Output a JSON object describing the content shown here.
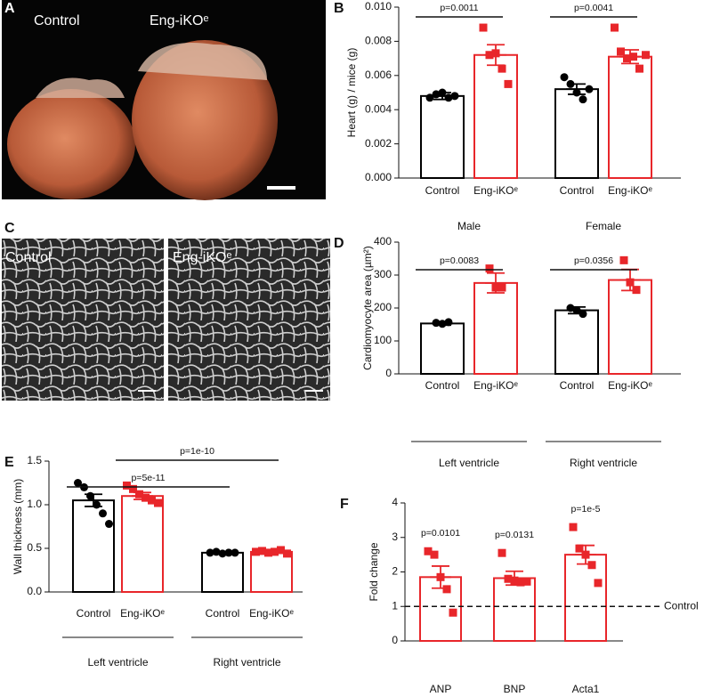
{
  "images": [
    {
      "panel": "A",
      "labels": [
        "Control",
        "Eng-iKOᵉ"
      ]
    },
    {
      "panel": "C",
      "labels": [
        "Control",
        "Eng-iKOᵉ"
      ]
    }
  ],
  "chart_data": [
    {
      "type": "bar",
      "panel": "B",
      "ylabel": "Heart (g) / mice (g)",
      "ylim": [
        0,
        0.01
      ],
      "yticks": [
        {
          "value": 0,
          "label": "0.000"
        },
        {
          "value": 0.002,
          "label": "0.002"
        },
        {
          "value": 0.004,
          "label": "0.004"
        },
        {
          "value": 0.006,
          "label": "0.006"
        },
        {
          "value": 0.008,
          "label": "0.008"
        },
        {
          "value": 0.01,
          "label": "0.010"
        }
      ],
      "categories": [
        "Control",
        "Eng-iKOᵉ",
        "Control",
        "Eng-iKOᵉ"
      ],
      "colors": [
        "#000000",
        "#e8262a",
        "#000000",
        "#e8262a"
      ],
      "values": [
        0.0048,
        0.0072,
        0.0052,
        0.0071
      ],
      "errors": [
        0.0002,
        0.0006,
        0.0003,
        0.0004
      ],
      "points": [
        [
          0.0047,
          0.0049,
          0.005,
          0.0047,
          0.0048
        ],
        [
          0.0088,
          0.0072,
          0.0073,
          0.0064,
          0.0055
        ],
        [
          0.0059,
          0.0055,
          0.005,
          0.0046,
          0.0052
        ],
        [
          0.0088,
          0.0074,
          0.007,
          0.0071,
          0.0064,
          0.0072
        ]
      ],
      "group_labels": [
        "Male",
        "Female"
      ],
      "group_underline": false,
      "comparisons": [
        {
          "bars": [
            0,
            1
          ],
          "label": "p=0.0011"
        },
        {
          "bars": [
            2,
            3
          ],
          "label": "p=0.0041"
        }
      ]
    },
    {
      "type": "bar",
      "panel": "D",
      "ylabel": "Cardiomyocyte area (µm²)",
      "ylim": [
        0,
        400
      ],
      "yticks": [
        0,
        100,
        200,
        300,
        400
      ],
      "categories": [
        "Control",
        "Eng-iKOᵉ",
        "Control",
        "Eng-iKOᵉ"
      ],
      "colors": [
        "#000000",
        "#e8262a",
        "#000000",
        "#e8262a"
      ],
      "values": [
        153,
        276,
        193,
        285
      ],
      "errors": [
        5,
        30,
        10,
        32
      ],
      "points": [
        [
          155,
          152,
          157
        ],
        [
          320,
          262,
          262
        ],
        [
          200,
          193,
          182
        ],
        [
          345,
          278,
          255
        ]
      ],
      "group_labels": [
        "Left ventricle",
        "Right ventricle"
      ],
      "group_underline": true,
      "comparisons": [
        {
          "bars": [
            0,
            1
          ],
          "label": "p=0.0083"
        },
        {
          "bars": [
            2,
            3
          ],
          "label": "p=0.0356"
        }
      ]
    },
    {
      "type": "bar",
      "panel": "E",
      "ylabel": "Wall thickness (mm)",
      "ylim": [
        0,
        1.5
      ],
      "yticks": [
        {
          "value": 0,
          "label": "0.0"
        },
        {
          "value": 0.5,
          "label": "0.5"
        },
        {
          "value": 1,
          "label": "1.0"
        },
        {
          "value": 1.5,
          "label": "1.5"
        }
      ],
      "categories": [
        "Control",
        "Eng-iKOᵉ",
        "Control",
        "Eng-iKOᵉ"
      ],
      "colors": [
        "#000000",
        "#e8262a",
        "#000000",
        "#e8262a"
      ],
      "values": [
        1.05,
        1.1,
        0.45,
        0.46
      ],
      "errors": [
        0.07,
        0.04,
        0.01,
        0.01
      ],
      "points": [
        [
          1.25,
          1.2,
          1.1,
          1.0,
          0.9,
          0.78
        ],
        [
          1.22,
          1.18,
          1.12,
          1.08,
          1.05,
          1.02
        ],
        [
          0.45,
          0.46,
          0.44,
          0.45,
          0.45
        ],
        [
          0.46,
          0.47,
          0.45,
          0.46,
          0.48,
          0.44
        ]
      ],
      "group_labels": [
        "Left ventricle",
        "Right ventricle"
      ],
      "group_underline": true,
      "comparisons": [
        {
          "bars": [
            0,
            2
          ],
          "label": "p=5e-11"
        },
        {
          "bars": [
            1,
            3
          ],
          "label": "p=1e-10"
        }
      ]
    },
    {
      "type": "bar",
      "panel": "F",
      "ylabel": "Fold change",
      "ylim": [
        0,
        4
      ],
      "yticks": [
        0,
        1,
        2,
        3,
        4
      ],
      "categories": [
        "ANP",
        "BNP",
        "Acta1"
      ],
      "colors": [
        "#e8262a",
        "#e8262a",
        "#e8262a"
      ],
      "values": [
        1.85,
        1.82,
        2.5
      ],
      "errors": [
        0.32,
        0.2,
        0.27
      ],
      "points": [
        [
          2.6,
          2.5,
          1.85,
          1.5,
          0.82
        ],
        [
          2.55,
          1.8,
          1.75,
          1.7,
          1.72
        ],
        [
          3.3,
          2.68,
          2.5,
          2.2,
          1.68
        ]
      ],
      "bar_labels": [
        "p=0.0101",
        "p=0.0131",
        "p=1e-5"
      ],
      "reference": {
        "value": 1,
        "label": "Control"
      }
    }
  ]
}
